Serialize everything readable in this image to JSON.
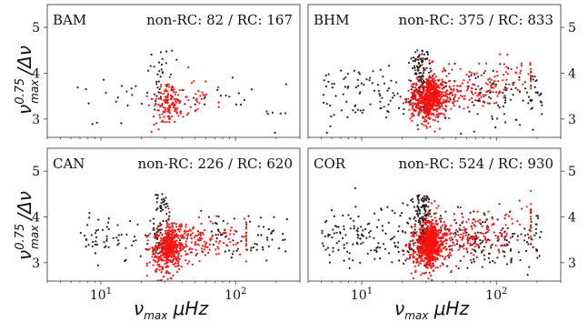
{
  "figure": {
    "ylabel": "ν_max^0.75/Δν",
    "xlabel": "ν_max μHz"
  },
  "chart_data": [
    {
      "type": "scatter",
      "panel_label": "BAM",
      "annotation": "non-RC: 82 / RC: 167",
      "xscale": "log",
      "xlim": [
        4,
        300
      ],
      "ylim": [
        2.6,
        5.5
      ],
      "yticks": [
        3,
        4,
        5
      ],
      "ytick_side": "left",
      "counts": {
        "non_rc": 82,
        "rc": 167
      },
      "series": [
        {
          "name": "non-RC",
          "color": "#222222",
          "x_range": [
            6,
            250
          ],
          "y_center": 3.5,
          "y_spread": 0.35
        },
        {
          "name": "RC",
          "color": "#ff1111",
          "x_range": [
            22,
            75
          ],
          "x_peak": 30,
          "y_center": 3.35,
          "y_spread": 0.28
        }
      ]
    },
    {
      "type": "scatter",
      "panel_label": "BHM",
      "annotation": "non-RC: 375 / RC: 833",
      "xscale": "log",
      "xlim": [
        4,
        300
      ],
      "ylim": [
        2.6,
        5.5
      ],
      "yticks": [
        3,
        4,
        5
      ],
      "ytick_side": "right",
      "counts": {
        "non_rc": 375,
        "rc": 833
      },
      "series": [
        {
          "name": "non-RC",
          "color": "#222222",
          "x_range": [
            5,
            220
          ],
          "y_center": 3.5,
          "y_spread": 0.38
        },
        {
          "name": "RC",
          "color": "#ff1111",
          "x_range": [
            20,
            180
          ],
          "x_peak": 30,
          "y_center": 3.45,
          "y_spread": 0.3
        }
      ]
    },
    {
      "type": "scatter",
      "panel_label": "CAN",
      "annotation": "non-RC: 226 / RC: 620",
      "xscale": "log",
      "xlim": [
        4,
        300
      ],
      "ylim": [
        2.6,
        5.5
      ],
      "yticks": [
        3,
        4,
        5
      ],
      "ytick_side": "left",
      "counts": {
        "non_rc": 226,
        "rc": 620
      },
      "series": [
        {
          "name": "non-RC",
          "color": "#222222",
          "x_range": [
            7,
            250
          ],
          "y_center": 3.5,
          "y_spread": 0.32
        },
        {
          "name": "RC",
          "color": "#ff1111",
          "x_range": [
            22,
            120
          ],
          "x_peak": 30,
          "y_center": 3.3,
          "y_spread": 0.3
        }
      ]
    },
    {
      "type": "scatter",
      "panel_label": "COR",
      "annotation": "non-RC: 524 / RC: 930",
      "xscale": "log",
      "xlim": [
        4,
        300
      ],
      "ylim": [
        2.6,
        5.5
      ],
      "yticks": [
        3,
        4,
        5
      ],
      "ytick_side": "right",
      "counts": {
        "non_rc": 524,
        "rc": 930
      },
      "series": [
        {
          "name": "non-RC",
          "color": "#222222",
          "x_range": [
            5,
            220
          ],
          "y_center": 3.5,
          "y_spread": 0.4
        },
        {
          "name": "RC",
          "color": "#ff1111",
          "x_range": [
            20,
            180
          ],
          "x_peak": 30,
          "y_center": 3.4,
          "y_spread": 0.32
        }
      ]
    }
  ],
  "xtick_labels": [
    "10",
    "2"
  ]
}
